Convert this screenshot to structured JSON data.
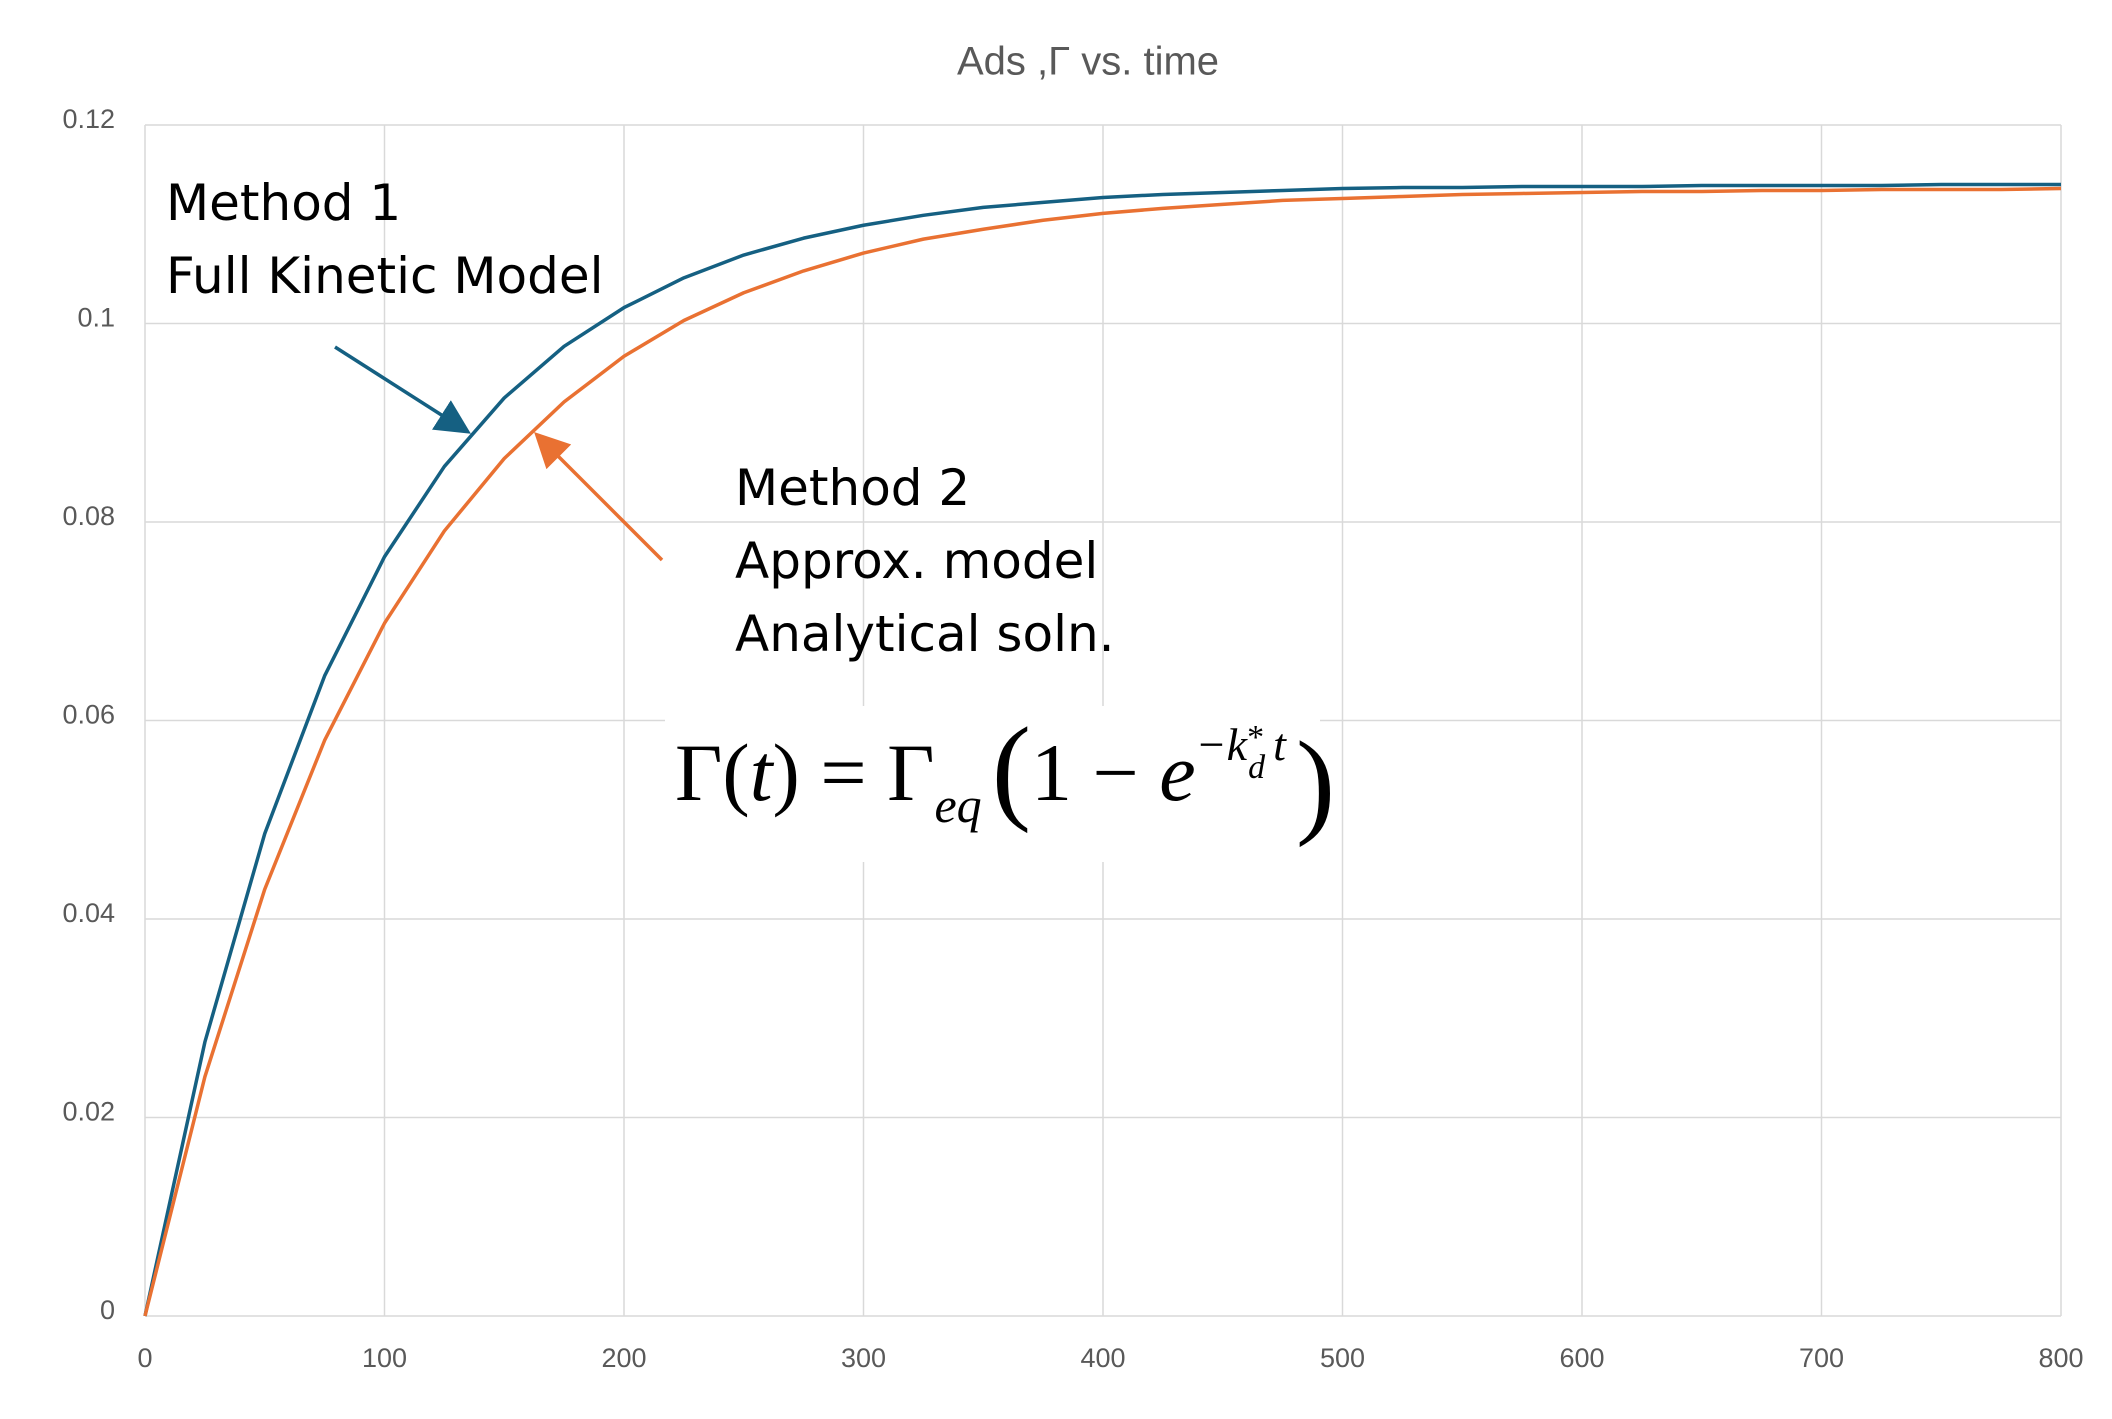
{
  "chart_data": {
    "type": "line",
    "title": "Ads ,Γ vs. time",
    "x": [
      0,
      25,
      50,
      75,
      100,
      125,
      150,
      175,
      200,
      225,
      250,
      275,
      300,
      325,
      350,
      375,
      400,
      425,
      450,
      475,
      500,
      525,
      550,
      575,
      600,
      625,
      650,
      675,
      700,
      725,
      750,
      775,
      800
    ],
    "series": [
      {
        "color": "#156082",
        "values": [
          0,
          0.0276,
          0.0486,
          0.0645,
          0.0765,
          0.0856,
          0.0925,
          0.0977,
          0.1016,
          0.1046,
          0.1069,
          0.1086,
          0.1099,
          0.1109,
          0.1117,
          0.1122,
          0.1127,
          0.113,
          0.1132,
          0.1134,
          0.1136,
          0.1137,
          0.1137,
          0.1138,
          0.1138,
          0.1138,
          0.1139,
          0.1139,
          0.1139,
          0.1139,
          0.114,
          0.114,
          0.114
        ]
      },
      {
        "color": "#e97132",
        "values": [
          0,
          0.0241,
          0.043,
          0.058,
          0.0698,
          0.0791,
          0.0864,
          0.0921,
          0.0967,
          0.1003,
          0.1031,
          0.1053,
          0.1071,
          0.1085,
          0.1095,
          0.1104,
          0.1111,
          0.1116,
          0.112,
          0.1124,
          0.1126,
          0.1128,
          0.113,
          0.1131,
          0.1132,
          0.1133,
          0.1133,
          0.1134,
          0.1134,
          0.1135,
          0.1135,
          0.1135,
          0.1136
        ]
      }
    ],
    "xlim": [
      0,
      800
    ],
    "xticks": [
      0,
      100,
      200,
      300,
      400,
      500,
      600,
      700,
      800
    ],
    "ylim": [
      0,
      0.12
    ],
    "yticks": [
      0,
      0.02,
      0.04,
      0.06,
      0.08,
      0.1,
      0.12
    ],
    "grid": true,
    "annotations": {
      "method1": [
        "Method 1",
        "Full Kinetic Model"
      ],
      "method2": [
        "Method 2",
        "Approx. model",
        "Analytical soln."
      ],
      "equation": [
        "Γ(",
        "t",
        ") = Γ",
        "eq",
        "(",
        "1 − ",
        "e",
        "−k",
        "*",
        "d",
        "t",
        ")"
      ]
    }
  }
}
